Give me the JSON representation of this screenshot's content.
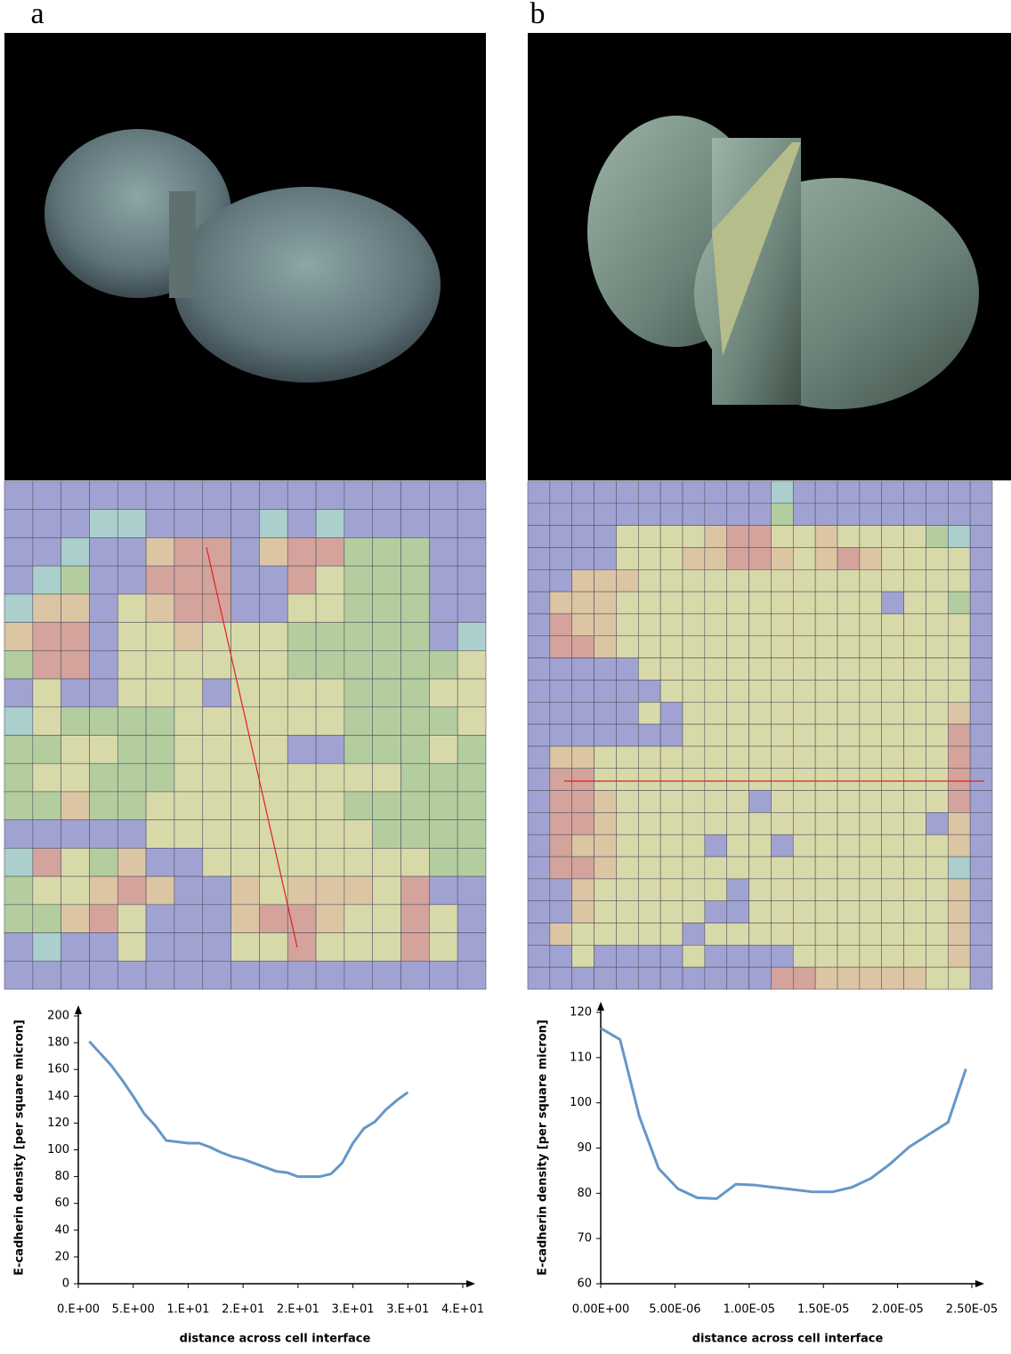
{
  "panels": [
    "a",
    "b"
  ],
  "chart_data": [
    {
      "type": "line",
      "x_label": "distance across cell interface",
      "y_label": "E-cadherin density [per square micron]",
      "xlim": [
        0,
        35
      ],
      "ylim": [
        0,
        200
      ],
      "xticks": [
        {
          "value": 0,
          "label": "0.E+00"
        },
        {
          "value": 5,
          "label": "5.E+00"
        },
        {
          "value": 10,
          "label": "1.E+01"
        },
        {
          "value": 15,
          "label": "2.E+01"
        },
        {
          "value": 20,
          "label": "2.E+01"
        },
        {
          "value": 25,
          "label": "3.E+01"
        },
        {
          "value": 30,
          "label": "3.E+01"
        },
        {
          "value": 35,
          "label": "4.E+01"
        }
      ],
      "yticks": [
        0,
        20,
        40,
        60,
        80,
        100,
        120,
        140,
        160,
        180,
        200
      ],
      "series": [
        {
          "color": "#6497c8",
          "x": [
            1,
            2,
            3,
            4,
            5,
            6,
            7,
            8,
            9,
            10,
            11,
            12,
            13,
            14,
            15,
            16,
            17,
            18,
            19,
            20,
            21,
            22,
            23,
            24,
            25,
            26,
            27,
            28,
            29,
            30
          ],
          "values": [
            181,
            172,
            163,
            152,
            140,
            127,
            118,
            107,
            106,
            105,
            105,
            102,
            98,
            95,
            93,
            90,
            87,
            84,
            83,
            80,
            80,
            80,
            82,
            90,
            105,
            116,
            121,
            130,
            137,
            143
          ]
        }
      ]
    },
    {
      "type": "line",
      "x_label": "distance across cell interface",
      "y_label": "E-cadherin density [per square micron]",
      "xlim": [
        0,
        2.5e-05
      ],
      "ylim": [
        60,
        120
      ],
      "xticks": [
        {
          "value": 0,
          "label": "0.00E+00"
        },
        {
          "value": 5e-06,
          "label": "5.00E-06"
        },
        {
          "value": 1e-05,
          "label": "1.00E-05"
        },
        {
          "value": 1.5e-05,
          "label": "1.50E-05"
        },
        {
          "value": 2e-05,
          "label": "2.00E-05"
        },
        {
          "value": 2.5e-05,
          "label": "2.50E-05"
        }
      ],
      "yticks": [
        60,
        70,
        80,
        90,
        100,
        110,
        120
      ],
      "series": [
        {
          "color": "#6497c8",
          "x": [
            0,
            1.3e-06,
            2.6e-06,
            3.9e-06,
            5.2e-06,
            6.5e-06,
            7.8e-06,
            9.1e-06,
            1.04e-05,
            1.17e-05,
            1.3e-05,
            1.43e-05,
            1.56e-05,
            1.69e-05,
            1.82e-05,
            1.95e-05,
            2.08e-05,
            2.21e-05,
            2.34e-05,
            2.46e-05
          ],
          "values": [
            116.5,
            114,
            97,
            85.5,
            81,
            79,
            78.8,
            82,
            81.8,
            81.3,
            80.8,
            80.3,
            80.3,
            81.3,
            83.3,
            86.5,
            90.3,
            93,
            95.7,
            107.5
          ]
        }
      ]
    }
  ]
}
